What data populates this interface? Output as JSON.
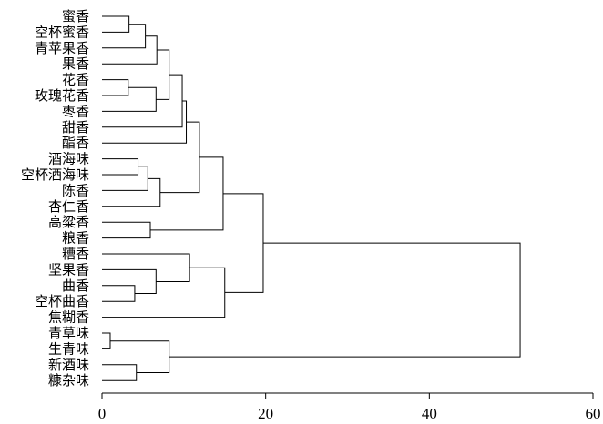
{
  "chart_data": {
    "type": "dendrogram",
    "orientation": "horizontal",
    "title": "",
    "xlabel": "",
    "ylabel": "",
    "xlim": [
      0,
      60
    ],
    "x_ticks": [
      0,
      20,
      40,
      60
    ],
    "grid": false,
    "legend": "none",
    "leaves": [
      "蜜香",
      "空杯蜜香",
      "青苹果香",
      "果香",
      "花香",
      "玫瑰花香",
      "枣香",
      "甜香",
      "酯香",
      "酒海味",
      "空杯酒海味",
      "陈香",
      "杏仁香",
      "高粱香",
      "粮香",
      "糟香",
      "坚果香",
      "曲香",
      "空杯曲香",
      "焦糊香",
      "青草味",
      "生青味",
      "新酒味",
      "糠杂味"
    ],
    "merges": [
      {
        "id": "c1",
        "a": "L0",
        "b": "L1",
        "distance": 3.3
      },
      {
        "id": "c2",
        "a": "c1",
        "b": "L2",
        "distance": 5.3
      },
      {
        "id": "c3",
        "a": "c2",
        "b": "L3",
        "distance": 6.7
      },
      {
        "id": "c4",
        "a": "L4",
        "b": "L5",
        "distance": 3.2
      },
      {
        "id": "c5",
        "a": "c4",
        "b": "L6",
        "distance": 6.6
      },
      {
        "id": "c6",
        "a": "c3",
        "b": "c5",
        "distance": 8.2
      },
      {
        "id": "c7",
        "a": "c6",
        "b": "L7",
        "distance": 9.8
      },
      {
        "id": "c8",
        "a": "c7",
        "b": "L8",
        "distance": 10.3
      },
      {
        "id": "c9",
        "a": "L9",
        "b": "L10",
        "distance": 4.4
      },
      {
        "id": "c10",
        "a": "c9",
        "b": "L11",
        "distance": 5.6
      },
      {
        "id": "c11",
        "a": "c10",
        "b": "L12",
        "distance": 7.1
      },
      {
        "id": "c12",
        "a": "c8",
        "b": "c11",
        "distance": 11.9
      },
      {
        "id": "c13",
        "a": "L13",
        "b": "L14",
        "distance": 5.9
      },
      {
        "id": "c14",
        "a": "c12",
        "b": "c13",
        "distance": 14.8
      },
      {
        "id": "c15",
        "a": "L17",
        "b": "L18",
        "distance": 4.0
      },
      {
        "id": "c16",
        "a": "c15",
        "b": "L16",
        "distance": 6.6
      },
      {
        "id": "c17",
        "a": "L15",
        "b": "c16",
        "distance": 10.7
      },
      {
        "id": "c18",
        "a": "c17",
        "b": "L19",
        "distance": 15.0
      },
      {
        "id": "c19",
        "a": "c14",
        "b": "c18",
        "distance": 19.7
      },
      {
        "id": "c20",
        "a": "L20",
        "b": "L21",
        "distance": 1.0
      },
      {
        "id": "c21",
        "a": "L22",
        "b": "L23",
        "distance": 4.2
      },
      {
        "id": "c22",
        "a": "c20",
        "b": "c21",
        "distance": 8.2
      },
      {
        "id": "c23",
        "a": "c19",
        "b": "c22",
        "distance": 51.1
      }
    ]
  }
}
